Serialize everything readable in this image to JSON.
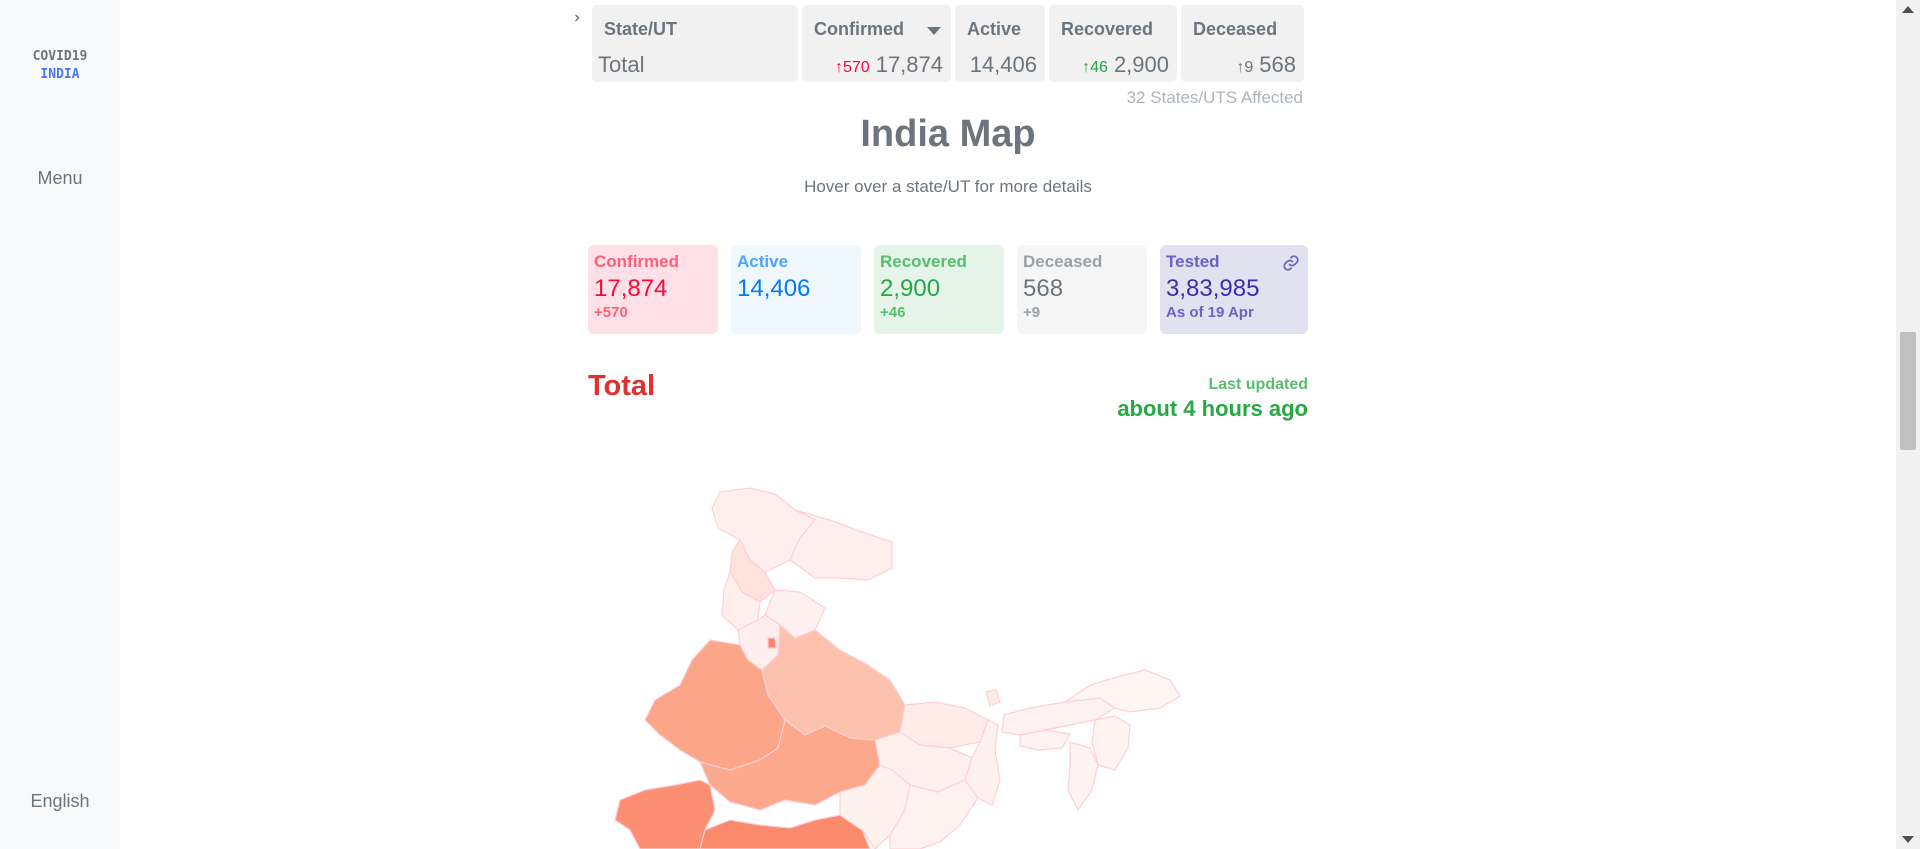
{
  "sidebar": {
    "logo_line1": "COVID19",
    "logo_line2": "INDIA",
    "menu_label": "Menu",
    "language_label": "English"
  },
  "table_header": {
    "state": {
      "label": "State/UT",
      "value": "Total"
    },
    "confirmed": {
      "label": "Confirmed",
      "delta": "570",
      "value": "17,874",
      "sorted": true
    },
    "active": {
      "label": "Active",
      "value": "14,406"
    },
    "recovered": {
      "label": "Recovered",
      "delta": "46",
      "value": "2,900"
    },
    "deceased": {
      "label": "Deceased",
      "delta": "9",
      "value": "568"
    }
  },
  "affected_text": "32 States/UTS Affected",
  "map_section": {
    "title": "India Map",
    "subtitle": "Hover over a state/UT for more details"
  },
  "stats": {
    "confirmed": {
      "label": "Confirmed",
      "value": "17,874",
      "delta": "+570"
    },
    "active": {
      "label": "Active",
      "value": "14,406"
    },
    "recovered": {
      "label": "Recovered",
      "value": "2,900",
      "delta": "+46"
    },
    "deceased": {
      "label": "Deceased",
      "value": "568",
      "delta": "+9"
    },
    "tested": {
      "label": "Tested",
      "value": "3,83,985",
      "note": "As of 19 Apr"
    }
  },
  "region_label": "Total",
  "last_updated": {
    "label": "Last updated",
    "value": "about 4 hours ago"
  },
  "colors": {
    "confirmed": "#ff073a",
    "active": "#007bff",
    "recovered": "#28a745",
    "deceased": "#6c757d",
    "tested": "#3b2eb0"
  },
  "icons": {
    "expand": "chevron-right-icon",
    "sort": "sort-down-icon",
    "delta": "arrow-up-icon",
    "tested_link": "link-icon"
  }
}
